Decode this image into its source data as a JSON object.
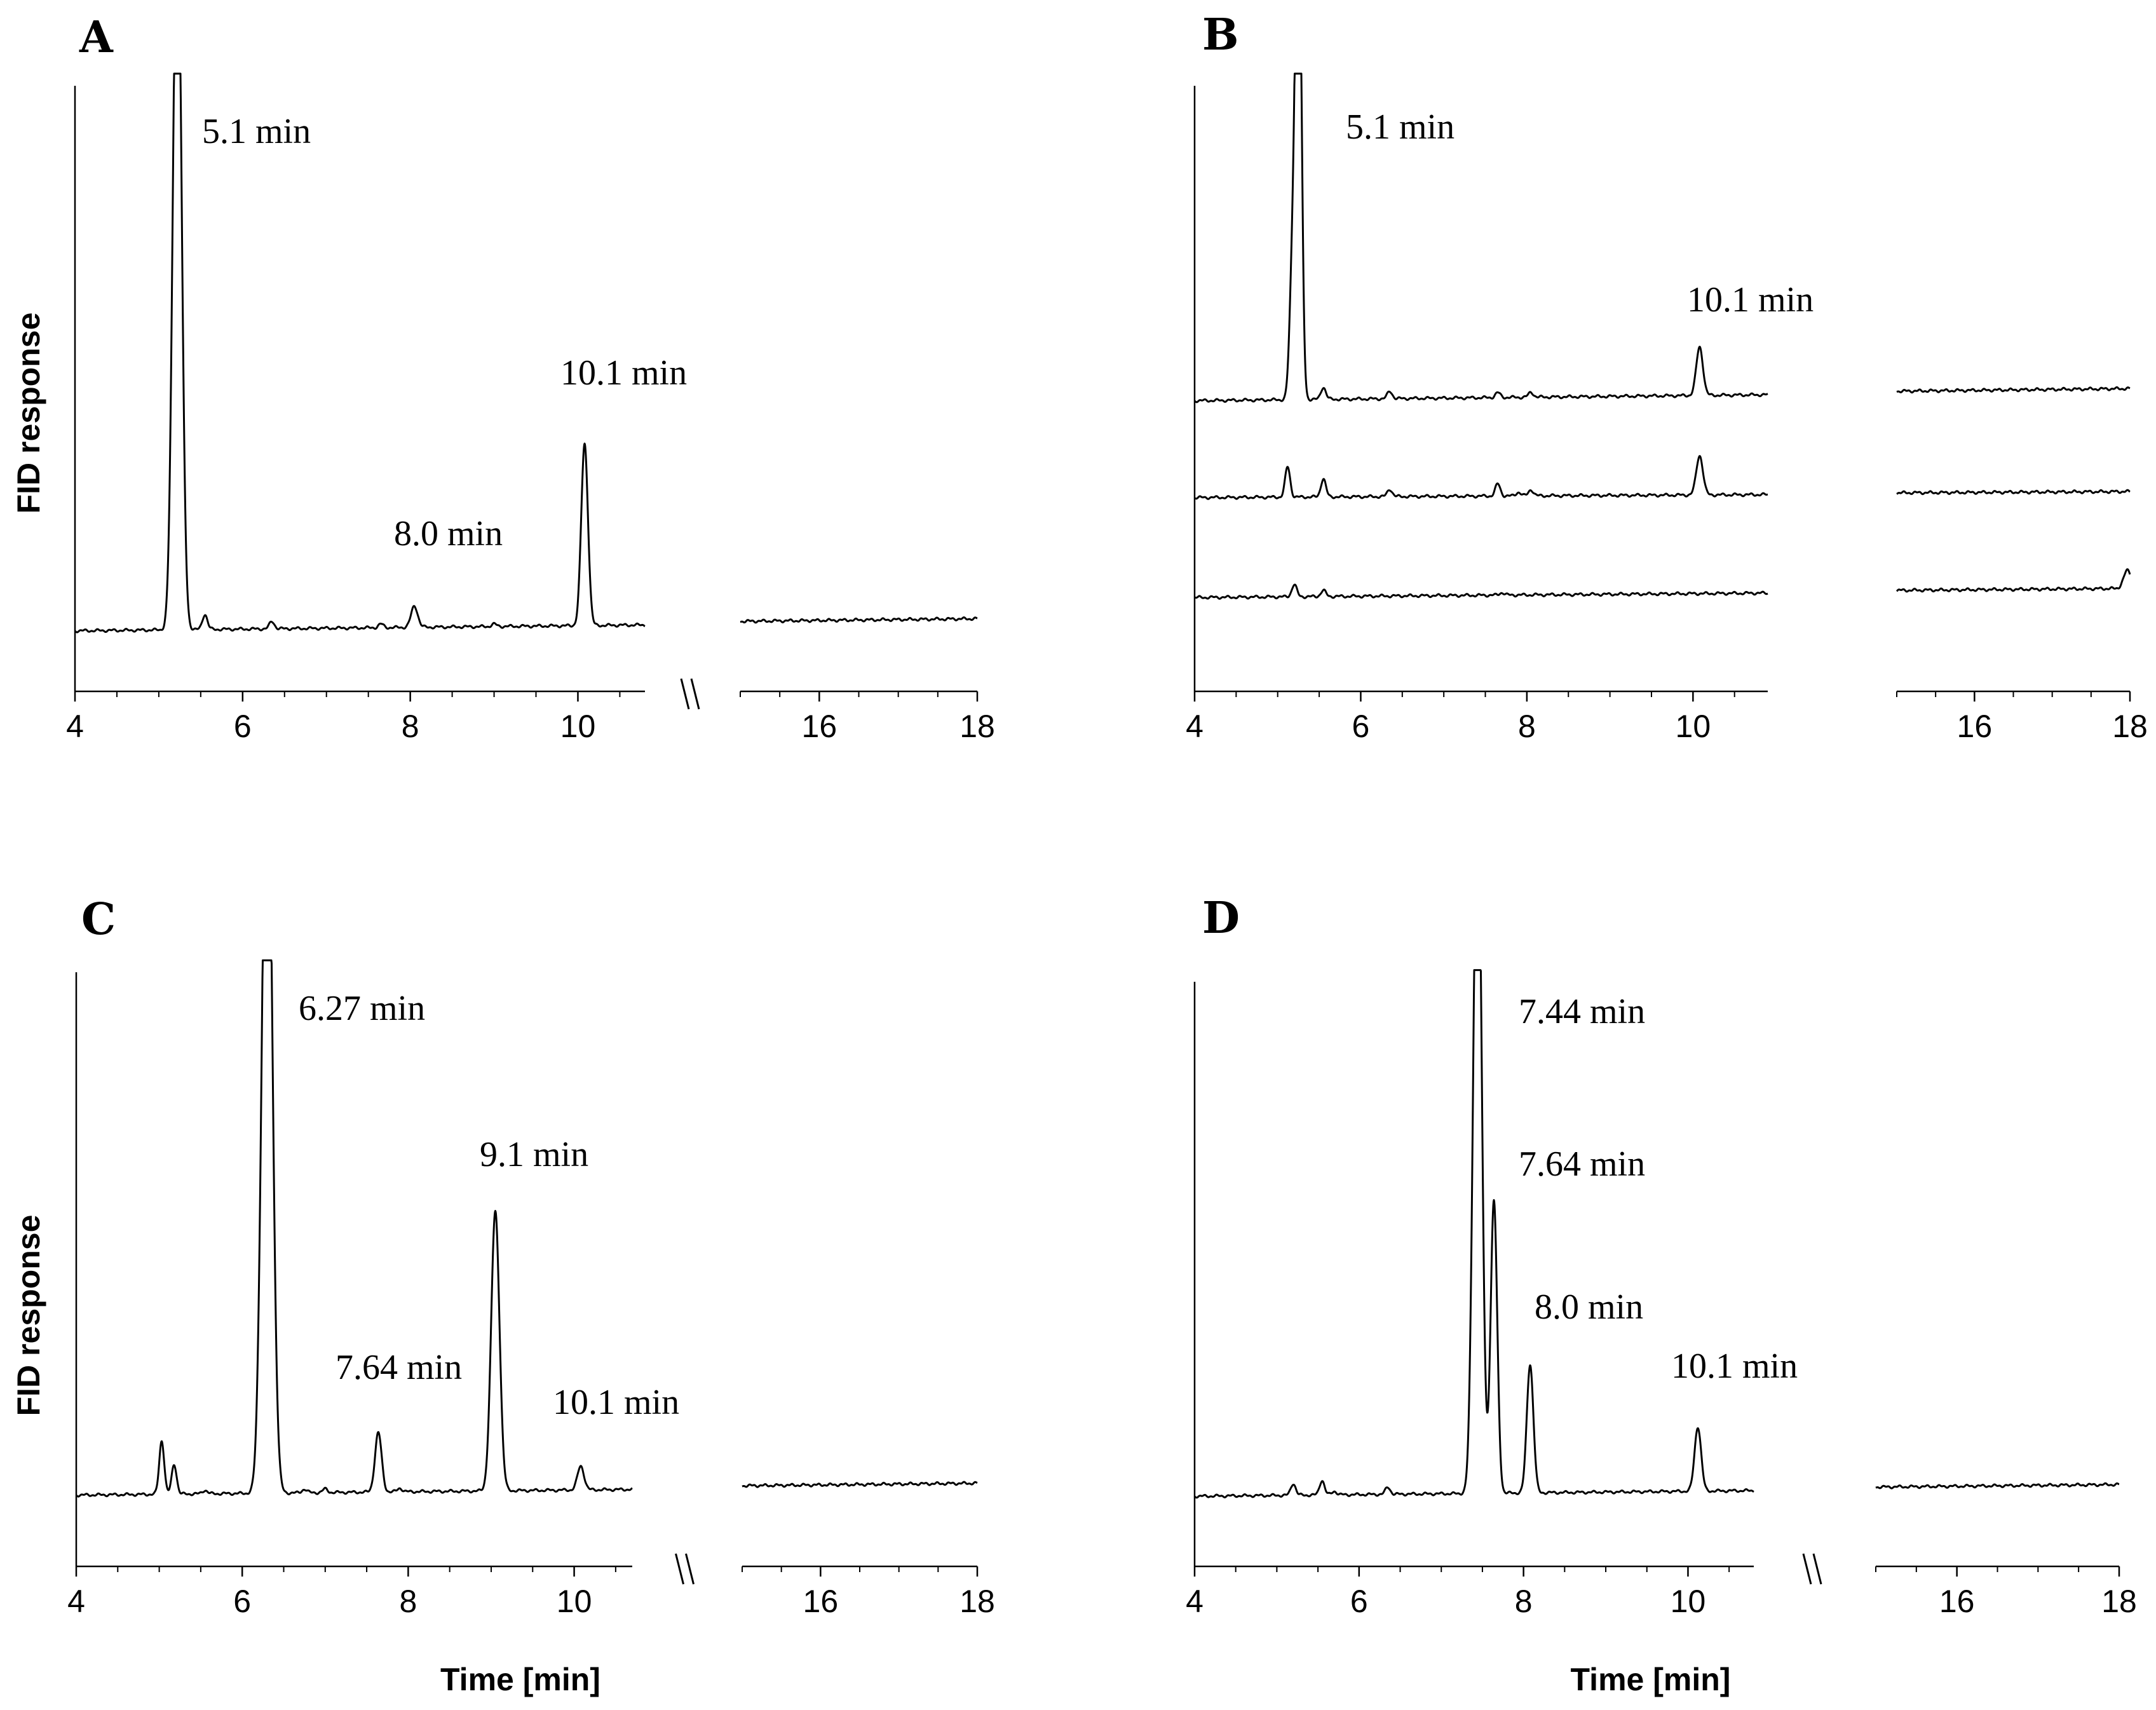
{
  "chart_data": [
    {
      "type": "line",
      "panel": "A",
      "ylabel": "FID response",
      "xlabel": "",
      "xlim": [
        4,
        18
      ],
      "x_break": [
        10.8,
        15
      ],
      "x_ticks": [
        4,
        6,
        8,
        10,
        16,
        18
      ],
      "break_symbol": "\\\\",
      "traces": [
        {
          "name": "trace",
          "baseline": 0.1,
          "drift": 0.02,
          "peaks": [
            [
              5.22,
              1.25,
              0.05
            ],
            [
              5.55,
              0.025,
              0.03
            ],
            [
              6.35,
              0.012,
              0.03
            ],
            [
              7.65,
              0.006,
              0.03
            ],
            [
              8.05,
              0.035,
              0.04
            ],
            [
              9.0,
              0.004,
              0.03
            ],
            [
              10.08,
              0.3,
              0.04
            ]
          ]
        }
      ],
      "annotations": [
        {
          "text": "5.1 min",
          "x": 5.1
        },
        {
          "text": "8.0 min",
          "x": 8.0
        },
        {
          "text": "10.1 min",
          "x": 10.1
        }
      ]
    },
    {
      "type": "line",
      "panel": "B",
      "ylabel": "",
      "xlabel": "",
      "xlim": [
        4,
        18
      ],
      "x_break": [
        10.9,
        15
      ],
      "x_ticks": [
        4,
        6,
        8,
        10,
        16,
        18
      ],
      "break_symbol": "",
      "traces": [
        {
          "name": "upper",
          "baseline": 0.48,
          "drift": 0.02,
          "peaks": [
            [
              5.18,
              0.22,
              0.035
            ],
            [
              5.25,
              0.9,
              0.035
            ],
            [
              5.55,
              0.02,
              0.03
            ],
            [
              6.35,
              0.012,
              0.03
            ],
            [
              7.65,
              0.008,
              0.03
            ],
            [
              8.05,
              0.008,
              0.03
            ],
            [
              10.08,
              0.08,
              0.04
            ]
          ]
        },
        {
          "name": "middle",
          "baseline": 0.32,
          "drift": 0.01,
          "peaks": [
            [
              5.12,
              0.05,
              0.03
            ],
            [
              5.55,
              0.03,
              0.03
            ],
            [
              6.35,
              0.012,
              0.03
            ],
            [
              7.65,
              0.02,
              0.03
            ],
            [
              7.9,
              0.006,
              0.03
            ],
            [
              8.05,
              0.01,
              0.03
            ],
            [
              10.08,
              0.065,
              0.04
            ]
          ]
        },
        {
          "name": "lower",
          "baseline": 0.155,
          "drift": 0.015,
          "peaks": [
            [
              5.2,
              0.02,
              0.03
            ],
            [
              5.55,
              0.01,
              0.03
            ],
            [
              7.7,
              0.004,
              0.03
            ],
            [
              17.97,
              0.03,
              0.05
            ]
          ]
        }
      ],
      "annotations": [
        {
          "text": "5.1 min",
          "x": 5.1
        },
        {
          "text": "10.1 min",
          "x": 10.1
        }
      ]
    },
    {
      "type": "line",
      "panel": "C",
      "ylabel": "FID response",
      "xlabel": "Time [min]",
      "xlim": [
        4,
        18
      ],
      "x_break": [
        10.7,
        15
      ],
      "x_ticks": [
        4,
        6,
        8,
        10,
        16,
        18
      ],
      "break_symbol": "\\\\",
      "traces": [
        {
          "name": "trace",
          "baseline": 0.12,
          "drift": 0.02,
          "peaks": [
            [
              5.03,
              0.09,
              0.03
            ],
            [
              5.18,
              0.05,
              0.03
            ],
            [
              5.55,
              0.006,
              0.03
            ],
            [
              6.3,
              1.35,
              0.06
            ],
            [
              6.75,
              0.006,
              0.03
            ],
            [
              7.0,
              0.006,
              0.03
            ],
            [
              7.64,
              0.1,
              0.04
            ],
            [
              7.9,
              0.006,
              0.03
            ],
            [
              9.05,
              0.47,
              0.05
            ],
            [
              10.08,
              0.04,
              0.04
            ]
          ]
        }
      ],
      "annotations": [
        {
          "text": "6.27 min",
          "x": 6.27
        },
        {
          "text": "7.64 min",
          "x": 7.64
        },
        {
          "text": "9.1 min",
          "x": 9.1
        },
        {
          "text": "10.1 min",
          "x": 10.1
        }
      ]
    },
    {
      "type": "line",
      "panel": "D",
      "ylabel": "",
      "xlabel": "Time [min]",
      "xlim": [
        4,
        18
      ],
      "x_break": [
        10.8,
        15
      ],
      "x_ticks": [
        4,
        6,
        8,
        10,
        16,
        18
      ],
      "break_symbol": "\\\\",
      "traces": [
        {
          "name": "trace",
          "baseline": 0.12,
          "drift": 0.02,
          "peaks": [
            [
              5.2,
              0.02,
              0.03
            ],
            [
              5.55,
              0.025,
              0.03
            ],
            [
              5.7,
              0.006,
              0.03
            ],
            [
              6.35,
              0.012,
              0.03
            ],
            [
              7.44,
              1.25,
              0.05
            ],
            [
              7.64,
              0.5,
              0.04
            ],
            [
              8.08,
              0.22,
              0.04
            ],
            [
              10.12,
              0.11,
              0.04
            ]
          ]
        }
      ],
      "annotations": [
        {
          "text": "7.44 min",
          "x": 7.44
        },
        {
          "text": "7.64 min",
          "x": 7.64
        },
        {
          "text": "8.0 min",
          "x": 8.0
        },
        {
          "text": "10.1 min",
          "x": 10.1
        }
      ]
    }
  ]
}
